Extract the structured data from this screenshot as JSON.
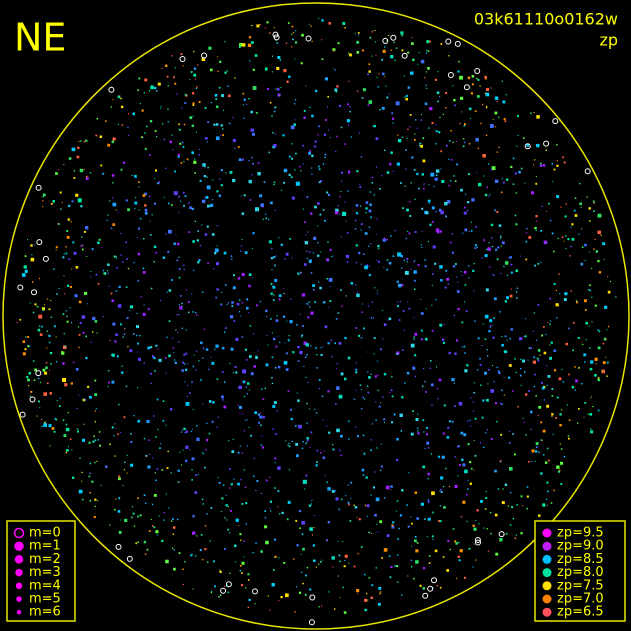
{
  "corner_label": "NE",
  "image_id": "03k61110o0162w",
  "mode": "zp",
  "magnitude_legend": [
    "m=0",
    "m=1",
    "m=2",
    "m=3",
    "m=4",
    "m=5",
    "m=6"
  ],
  "zp_legend": [
    "zp=9.5",
    "zp=9.0",
    "zp=8.5",
    "zp=8.0",
    "zp=7.5",
    "zp=7.0",
    "zp=6.5"
  ]
}
